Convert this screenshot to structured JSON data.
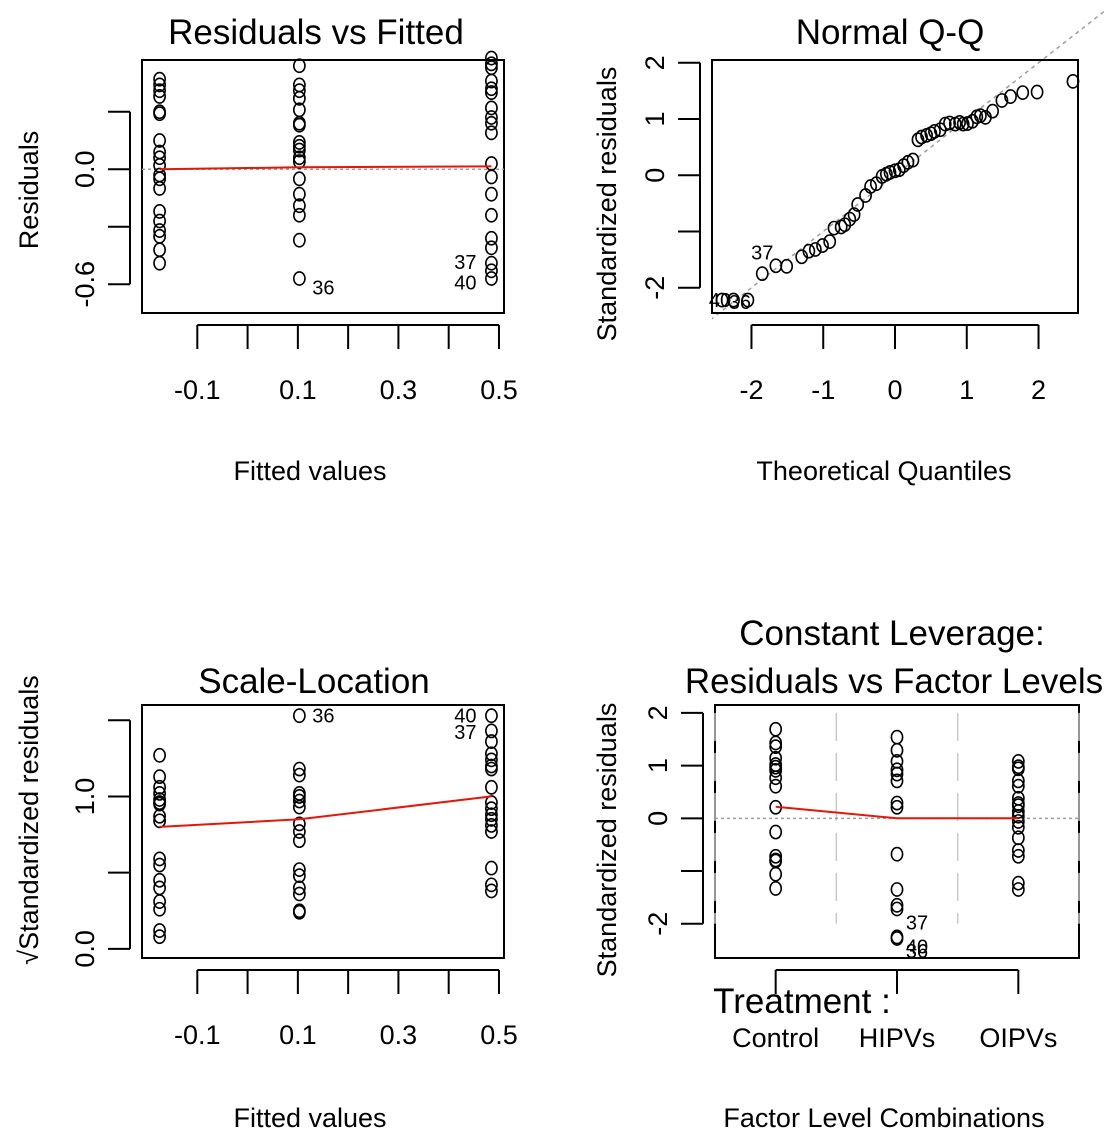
{
  "colors": {
    "points": "#000000",
    "smoother": "#e3170a",
    "reference": "#9e9e9e",
    "separator": "#c8c8c8"
  },
  "chart_data": [
    {
      "type": "scatter",
      "title": "Residuals vs Fitted",
      "xlabel": "Fitted values",
      "ylabel": "Residuals",
      "xlim": [
        -0.21,
        0.51
      ],
      "ylim": [
        -0.75,
        0.57
      ],
      "xticks": [
        -0.1,
        0.1,
        0.3,
        0.5
      ],
      "xtick_labels": [
        "-0.1",
        "0.1",
        "0.3",
        "0.5"
      ],
      "xticks_minor": [
        0.0,
        0.2,
        0.4
      ],
      "yticks": [
        -0.6,
        -0.3,
        0.0,
        0.3
      ],
      "ytick_labels": [
        "-0.6",
        "",
        "0.0",
        ""
      ],
      "groups": [
        {
          "x": -0.175,
          "y": [
            0.47,
            0.44,
            0.41,
            0.38,
            0.3,
            0.29,
            0.15,
            0.09,
            0.06,
            0.02,
            -0.03,
            -0.05,
            -0.1,
            -0.22,
            -0.27,
            -0.32,
            -0.35,
            -0.42,
            -0.49
          ]
        },
        {
          "x": 0.103,
          "y": [
            0.54,
            0.44,
            0.41,
            0.37,
            0.31,
            0.24,
            0.23,
            0.14,
            0.12,
            0.1,
            0.06,
            0.04,
            -0.05,
            -0.13,
            -0.19,
            -0.24,
            -0.37,
            -0.57
          ]
        },
        {
          "x": 0.485,
          "y": [
            0.58,
            0.55,
            0.53,
            0.46,
            0.42,
            0.4,
            0.32,
            0.27,
            0.24,
            0.19,
            0.03,
            -0.04,
            -0.13,
            -0.24,
            -0.36,
            -0.41,
            -0.49,
            -0.53,
            -0.57
          ]
        }
      ],
      "smoother": [
        {
          "x": -0.175,
          "y": 0.0
        },
        {
          "x": 0.103,
          "y": 0.01
        },
        {
          "x": 0.485,
          "y": 0.015
        }
      ],
      "hline": 0,
      "labels": [
        {
          "text": "36",
          "x": 0.103,
          "y": -0.57
        },
        {
          "text": "37",
          "x": 0.485,
          "y": -0.49
        },
        {
          "text": "40",
          "x": 0.485,
          "y": -0.57
        }
      ]
    },
    {
      "type": "scatter",
      "title": "Normal Q-Q",
      "xlabel": "Theoretical Quantiles",
      "ylabel": "Standardized residuals",
      "xlim": [
        -2.55,
        2.55
      ],
      "ylim": [
        -2.45,
        2.05
      ],
      "xticks": [
        -2,
        -1,
        0,
        1,
        2
      ],
      "xtick_labels": [
        "-2",
        "-1",
        "0",
        "1",
        "2"
      ],
      "yticks": [
        -2,
        -1,
        0,
        1,
        2
      ],
      "ytick_labels": [
        "-2",
        "",
        "0",
        "1",
        "2"
      ],
      "reference_line": {
        "intercept": 0,
        "slope": 1
      },
      "points": [
        [
          -2.41,
          -2.22
        ],
        [
          -2.25,
          -2.22
        ],
        [
          -2.05,
          -2.22
        ],
        [
          -1.85,
          -1.75
        ],
        [
          -1.66,
          -1.61
        ],
        [
          -1.51,
          -1.62
        ],
        [
          -1.3,
          -1.45
        ],
        [
          -1.2,
          -1.35
        ],
        [
          -1.11,
          -1.32
        ],
        [
          -1.01,
          -1.25
        ],
        [
          -0.91,
          -1.18
        ],
        [
          -0.85,
          -0.94
        ],
        [
          -0.75,
          -0.92
        ],
        [
          -0.7,
          -0.88
        ],
        [
          -0.63,
          -0.78
        ],
        [
          -0.57,
          -0.7
        ],
        [
          -0.52,
          -0.52
        ],
        [
          -0.41,
          -0.36
        ],
        [
          -0.34,
          -0.2
        ],
        [
          -0.26,
          -0.15
        ],
        [
          -0.18,
          -0.02
        ],
        [
          -0.12,
          0.02
        ],
        [
          -0.07,
          0.05
        ],
        [
          0.0,
          0.08
        ],
        [
          0.06,
          0.1
        ],
        [
          0.12,
          0.17
        ],
        [
          0.18,
          0.23
        ],
        [
          0.25,
          0.27
        ],
        [
          0.32,
          0.63
        ],
        [
          0.37,
          0.68
        ],
        [
          0.44,
          0.71
        ],
        [
          0.5,
          0.74
        ],
        [
          0.55,
          0.78
        ],
        [
          0.63,
          0.81
        ],
        [
          0.7,
          0.91
        ],
        [
          0.76,
          0.93
        ],
        [
          0.84,
          0.91
        ],
        [
          0.9,
          0.94
        ],
        [
          0.95,
          0.91
        ],
        [
          1.01,
          0.92
        ],
        [
          1.08,
          0.96
        ],
        [
          1.14,
          1.04
        ],
        [
          1.19,
          1.06
        ],
        [
          1.26,
          1.03
        ],
        [
          1.36,
          1.14
        ],
        [
          1.49,
          1.33
        ],
        [
          1.61,
          1.4
        ],
        [
          1.78,
          1.47
        ],
        [
          1.98,
          1.48
        ],
        [
          2.48,
          1.67
        ]
      ],
      "labels": [
        {
          "text": "37",
          "x": -1.85,
          "y": -1.75
        },
        {
          "text": "40",
          "x": -2.41,
          "y": -2.22
        },
        {
          "text": "36",
          "x": -2.05,
          "y": -2.22
        }
      ]
    },
    {
      "type": "scatter",
      "title": "Scale-Location",
      "xlabel": "Fitted values",
      "ylabel": "√Standardized residuals",
      "xlim": [
        -0.21,
        0.51
      ],
      "ylim": [
        -0.06,
        1.6
      ],
      "xticks": [
        -0.1,
        0.1,
        0.3,
        0.5
      ],
      "xtick_labels": [
        "-0.1",
        "0.1",
        "0.3",
        "0.5"
      ],
      "xticks_minor": [
        0.0,
        0.2,
        0.4
      ],
      "yticks": [
        0.0,
        0.5,
        1.0,
        1.5
      ],
      "ytick_labels": [
        "0.0",
        "",
        "1.0",
        ""
      ],
      "groups": [
        {
          "x": -0.175,
          "y": [
            1.27,
            1.13,
            1.06,
            1.02,
            0.98,
            0.96,
            0.95,
            0.87,
            0.84,
            0.59,
            0.55,
            0.45,
            0.4,
            0.31,
            0.26,
            0.12,
            0.08
          ]
        },
        {
          "x": 0.103,
          "y": [
            1.53,
            1.18,
            1.14,
            1.02,
            1.0,
            0.97,
            0.93,
            0.82,
            0.77,
            0.71,
            0.52,
            0.48,
            0.4,
            0.36,
            0.25,
            0.24
          ]
        },
        {
          "x": 0.485,
          "y": [
            1.53,
            1.43,
            1.36,
            1.28,
            1.24,
            1.2,
            1.18,
            1.06,
            0.96,
            0.92,
            0.88,
            0.85,
            0.81,
            0.77,
            0.53,
            0.42,
            0.38
          ]
        }
      ],
      "smoother": [
        {
          "x": -0.175,
          "y": 0.8
        },
        {
          "x": 0.103,
          "y": 0.85
        },
        {
          "x": 0.485,
          "y": 1.0
        }
      ],
      "labels": [
        {
          "text": "36",
          "x": 0.103,
          "y": 1.53
        },
        {
          "text": "40",
          "x": 0.485,
          "y": 1.53
        },
        {
          "text": "37",
          "x": 0.485,
          "y": 1.43
        }
      ]
    },
    {
      "type": "scatter",
      "title": "Constant Leverage:\nResiduals vs Factor Levels",
      "title_lines": [
        "Constant Leverage:",
        "Residuals vs Factor Levels"
      ],
      "xlabel": "Factor Level Combinations",
      "ylabel": "Standardized residuals",
      "factor_name": "Treatment :",
      "categories": [
        "Control",
        "HIPVs",
        "OIPVs"
      ],
      "xlim": [
        0.5,
        3.5
      ],
      "ylim": [
        -2.65,
        2.15
      ],
      "yticks": [
        -2,
        -1,
        0,
        1,
        2
      ],
      "ytick_labels": [
        "-2",
        "",
        "0",
        "1",
        "2"
      ],
      "hline": 0,
      "groups": [
        {
          "category": "Control",
          "y": [
            1.69,
            1.43,
            1.36,
            1.14,
            1.02,
            0.97,
            0.91,
            0.77,
            0.61,
            0.21,
            -0.26,
            -0.72,
            -0.79,
            -0.81,
            -1.06,
            -1.33
          ]
        },
        {
          "category": "HIPVs",
          "y": [
            1.54,
            1.29,
            1.08,
            0.92,
            0.84,
            0.71,
            0.29,
            0.21,
            -0.68,
            -1.35,
            -1.65,
            -1.72,
            -2.25,
            -2.28
          ]
        },
        {
          "category": "OIPVs",
          "y": [
            1.08,
            0.98,
            0.94,
            0.71,
            0.61,
            0.38,
            0.28,
            0.24,
            0.13,
            0.04,
            -0.06,
            -0.17,
            -0.37,
            -0.61,
            -0.72,
            -1.23,
            -1.35
          ]
        }
      ],
      "smoother": [
        {
          "x": 1,
          "y": 0.22
        },
        {
          "x": 2,
          "y": 0.0
        },
        {
          "x": 3,
          "y": 0.0
        }
      ],
      "labels": [
        {
          "text": "37",
          "x": 2,
          "y": -2.0
        },
        {
          "text": "40",
          "x": 2,
          "y": -2.45
        },
        {
          "text": "36",
          "x": 2,
          "y": -2.5
        }
      ]
    }
  ]
}
